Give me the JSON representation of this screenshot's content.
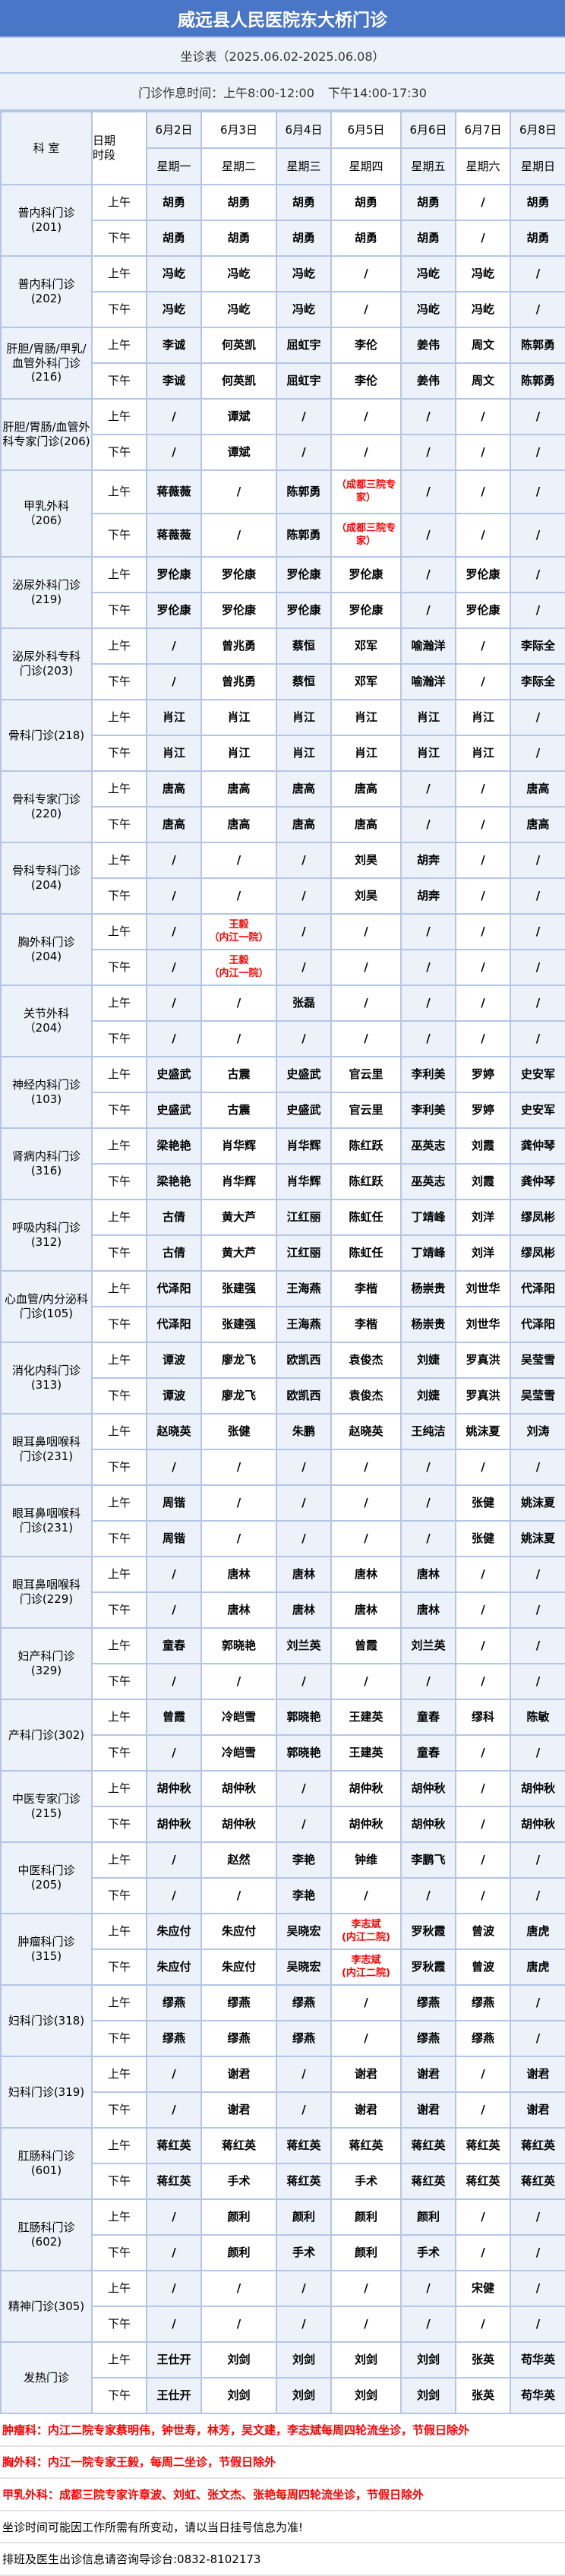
{
  "header": {
    "title": "威远县人民医院东大桥门诊",
    "subtitle": "坐诊表（2025.06.02-2025.06.08）",
    "hours_label": "门诊作息时间：上午8:00-12:00",
    "hours_pm": "下午14:00-17:30"
  },
  "columns": {
    "dept": "科    室",
    "period": "日期\n时段",
    "dates": [
      "6月2日",
      "6月3日",
      "6月4日",
      "6月5日",
      "6月6日",
      "6月7日",
      "6月8日"
    ],
    "weekdays": [
      "星期一",
      "星期二",
      "星期三",
      "星期四",
      "星期五",
      "星期六",
      "星期日"
    ],
    "am": "上午",
    "pm": "下午"
  },
  "colors": {
    "title_bg": "#4a76c8",
    "shade": "#ecf1fa",
    "border": "#b4c6e7",
    "highlight": "#ff0000"
  },
  "departments": [
    {
      "name": "普内科门诊\n(201)",
      "am": [
        "胡勇",
        "胡勇",
        "胡勇",
        "胡勇",
        "胡勇",
        "/",
        "胡勇"
      ],
      "pm": [
        "胡勇",
        "胡勇",
        "胡勇",
        "胡勇",
        "胡勇",
        "/",
        "胡勇"
      ]
    },
    {
      "name": "普内科门诊\n(202)",
      "am": [
        "冯屹",
        "冯屹",
        "冯屹",
        "/",
        "冯屹",
        "冯屹",
        "/"
      ],
      "pm": [
        "冯屹",
        "冯屹",
        "冯屹",
        "/",
        "冯屹",
        "冯屹",
        "/"
      ]
    },
    {
      "name": "肝胆/胃肠/甲乳/血管外科门诊(216)",
      "am": [
        "李诚",
        "何英凯",
        "屈虹宇",
        "李伦",
        "姜伟",
        "周文",
        "陈郭勇"
      ],
      "pm": [
        "李诚",
        "何英凯",
        "屈虹宇",
        "李伦",
        "姜伟",
        "周文",
        "陈郭勇"
      ]
    },
    {
      "name": "肝胆/胃肠/血管外科专家门诊(206)",
      "am": [
        "/",
        "谭斌",
        "/",
        "/",
        "/",
        "/",
        "/"
      ],
      "pm": [
        "/",
        "谭斌",
        "/",
        "/",
        "/",
        "/",
        "/"
      ]
    },
    {
      "name": "甲乳外科\n（206）",
      "tall": true,
      "am": [
        "蒋薇薇",
        "/",
        "陈郭勇",
        "（成都三院专家）",
        "/",
        "/",
        "/"
      ],
      "pm": [
        "蒋薇薇",
        "/",
        "陈郭勇",
        "（成都三院专家）",
        "/",
        "/",
        "/"
      ],
      "red": [
        3
      ]
    },
    {
      "name": "泌尿外科门诊\n(219)",
      "am": [
        "罗伦康",
        "罗伦康",
        "罗伦康",
        "罗伦康",
        "/",
        "罗伦康",
        "/"
      ],
      "pm": [
        "罗伦康",
        "罗伦康",
        "罗伦康",
        "罗伦康",
        "/",
        "罗伦康",
        "/"
      ]
    },
    {
      "name": "泌尿外科专科\n门诊(203)",
      "am": [
        "/",
        "曾兆勇",
        "蔡恒",
        "邓军",
        "喻瀚洋",
        "/",
        "李际全"
      ],
      "pm": [
        "/",
        "曾兆勇",
        "蔡恒",
        "邓军",
        "喻瀚洋",
        "/",
        "李际全"
      ]
    },
    {
      "name": "骨科门诊(218)",
      "am": [
        "肖江",
        "肖江",
        "肖江",
        "肖江",
        "肖江",
        "肖江",
        "/"
      ],
      "pm": [
        "肖江",
        "肖江",
        "肖江",
        "肖江",
        "肖江",
        "肖江",
        "/"
      ]
    },
    {
      "name": "骨科专家门诊\n(220)",
      "am": [
        "唐高",
        "唐高",
        "唐高",
        "唐高",
        "/",
        "/",
        "唐高"
      ],
      "pm": [
        "唐高",
        "唐高",
        "唐高",
        "唐高",
        "/",
        "/",
        "唐高"
      ]
    },
    {
      "name": "骨科专科门诊\n(204)",
      "am": [
        "/",
        "/",
        "/",
        "刘昊",
        "胡奔",
        "/",
        "/"
      ],
      "pm": [
        "/",
        "/",
        "/",
        "刘昊",
        "胡奔",
        "/",
        "/"
      ]
    },
    {
      "name": "胸外科门诊\n(204)",
      "am": [
        "/",
        "王毅\n（内江一院）",
        "/",
        "/",
        "/",
        "/",
        "/"
      ],
      "pm": [
        "/",
        "王毅\n（内江一院）",
        "/",
        "/",
        "/",
        "/",
        "/"
      ],
      "red": [
        1
      ]
    },
    {
      "name": "关节外科\n（204）",
      "am": [
        "/",
        "/",
        "张磊",
        "/",
        "/",
        "/",
        "/"
      ],
      "pm": [
        "/",
        "/",
        "/",
        "/",
        "/",
        "/",
        "/"
      ]
    },
    {
      "name": "神经内科门诊\n(103)",
      "am": [
        "史盛武",
        "古震",
        "史盛武",
        "官云里",
        "李利美",
        "罗婷",
        "史安军"
      ],
      "pm": [
        "史盛武",
        "古震",
        "史盛武",
        "官云里",
        "李利美",
        "罗婷",
        "史安军"
      ]
    },
    {
      "name": "肾病内科门诊\n(316)",
      "am": [
        "梁艳艳",
        "肖华辉",
        "肖华辉",
        "陈红跃",
        "巫英志",
        "刘霞",
        "龚仲琴"
      ],
      "pm": [
        "梁艳艳",
        "肖华辉",
        "肖华辉",
        "陈红跃",
        "巫英志",
        "刘霞",
        "龚仲琴"
      ]
    },
    {
      "name": "呼吸内科门诊\n(312)",
      "am": [
        "古倩",
        "黄大芦",
        "江红丽",
        "陈虹任",
        "丁靖峰",
        "刘洋",
        "缪凤彬"
      ],
      "pm": [
        "古倩",
        "黄大芦",
        "江红丽",
        "陈虹任",
        "丁靖峰",
        "刘洋",
        "缪凤彬"
      ]
    },
    {
      "name": "心血管/内分泌科门诊(105)",
      "am": [
        "代泽阳",
        "张建强",
        "王海燕",
        "李楷",
        "杨崇贵",
        "刘世华",
        "代泽阳"
      ],
      "pm": [
        "代泽阳",
        "张建强",
        "王海燕",
        "李楷",
        "杨崇贵",
        "刘世华",
        "代泽阳"
      ]
    },
    {
      "name": "消化内科门诊\n(313)",
      "am": [
        "谭波",
        "廖龙飞",
        "欧凯西",
        "袁俊杰",
        "刘婕",
        "罗真洪",
        "吴莹雪"
      ],
      "pm": [
        "谭波",
        "廖龙飞",
        "欧凯西",
        "袁俊杰",
        "刘婕",
        "罗真洪",
        "吴莹雪"
      ]
    },
    {
      "name": "眼耳鼻咽喉科\n门诊(231)",
      "am": [
        "赵晓英",
        "张健",
        "朱鹏",
        "赵晓英",
        "王纯洁",
        "姚沫夏",
        "刘涛"
      ],
      "pm": [
        "/",
        "/",
        "/",
        "/",
        "/",
        "/",
        "/"
      ]
    },
    {
      "name": "眼耳鼻咽喉科\n门诊(231)",
      "am": [
        "周锴",
        "/",
        "/",
        "/",
        "/",
        "张健",
        "姚沫夏"
      ],
      "pm": [
        "周锴",
        "/",
        "/",
        "/",
        "/",
        "张健",
        "姚沫夏"
      ]
    },
    {
      "name": "眼耳鼻咽喉科\n门诊(229)",
      "am": [
        "/",
        "唐林",
        "唐林",
        "唐林",
        "唐林",
        "/",
        "/"
      ],
      "pm": [
        "/",
        "唐林",
        "唐林",
        "唐林",
        "唐林",
        "/",
        "/"
      ]
    },
    {
      "name": "妇产科门诊\n(329)",
      "am": [
        "童春",
        "郭晓艳",
        "刘兰英",
        "曾霞",
        "刘兰英",
        "/",
        "/"
      ],
      "pm": [
        "/",
        "/",
        "/",
        "/",
        "/",
        "/",
        "/"
      ]
    },
    {
      "name": "产科门诊(302)",
      "am": [
        "曾霞",
        "冷皑雪",
        "郭晓艳",
        "王建英",
        "童春",
        "缪科",
        "陈敏"
      ],
      "pm": [
        "/",
        "冷皑雪",
        "郭晓艳",
        "王建英",
        "童春",
        "/",
        "/"
      ]
    },
    {
      "name": "中医专家门诊\n(215)",
      "am": [
        "胡仲秋",
        "胡仲秋",
        "/",
        "胡仲秋",
        "胡仲秋",
        "/",
        "胡仲秋"
      ],
      "pm": [
        "胡仲秋",
        "胡仲秋",
        "/",
        "胡仲秋",
        "胡仲秋",
        "/",
        "胡仲秋"
      ]
    },
    {
      "name": "中医科门诊\n(205)",
      "am": [
        "/",
        "赵然",
        "李艳",
        "钟维",
        "李鹏飞",
        "/",
        "/"
      ],
      "pm": [
        "/",
        "/",
        "李艳",
        "/",
        "/",
        "/",
        "/"
      ]
    },
    {
      "name": "肿瘤科门诊\n(315)",
      "am": [
        "朱应付",
        "朱应付",
        "吴晓宏",
        "李志斌\n(内江二院)",
        "罗秋霞",
        "曾波",
        "唐虎"
      ],
      "pm": [
        "朱应付",
        "朱应付",
        "吴晓宏",
        "李志斌\n(内江二院)",
        "罗秋霞",
        "曾波",
        "唐虎"
      ],
      "red": [
        3
      ]
    },
    {
      "name": "妇科门诊(318)",
      "am": [
        "缪燕",
        "缪燕",
        "缪燕",
        "/",
        "缪燕",
        "缪燕",
        "/"
      ],
      "pm": [
        "缪燕",
        "缪燕",
        "缪燕",
        "/",
        "缪燕",
        "缪燕",
        "/"
      ]
    },
    {
      "name": "妇科门诊(319)",
      "am": [
        "/",
        "谢君",
        "/",
        "谢君",
        "谢君",
        "/",
        "谢君"
      ],
      "pm": [
        "/",
        "谢君",
        "/",
        "谢君",
        "谢君",
        "/",
        "谢君"
      ]
    },
    {
      "name": "肛肠科门诊\n(601)",
      "am": [
        "蒋红英",
        "蒋红英",
        "蒋红英",
        "蒋红英",
        "蒋红英",
        "蒋红英",
        "蒋红英"
      ],
      "pm": [
        "蒋红英",
        "手术",
        "蒋红英",
        "手术",
        "蒋红英",
        "蒋红英",
        "蒋红英"
      ]
    },
    {
      "name": "肛肠科门诊\n(602)",
      "am": [
        "/",
        "颜利",
        "颜利",
        "颜利",
        "颜利",
        "/",
        "/"
      ],
      "pm": [
        "/",
        "颜利",
        "手术",
        "颜利",
        "手术",
        "/",
        "/"
      ]
    },
    {
      "name": "精神门诊(305)",
      "am": [
        "/",
        "/",
        "/",
        "/",
        "/",
        "宋健",
        "/"
      ],
      "pm": [
        "/",
        "/",
        "/",
        "/",
        "/",
        "/",
        "/"
      ]
    },
    {
      "name": "发热门诊",
      "am": [
        "王仕开",
        "刘剑",
        "刘剑",
        "刘剑",
        "刘剑",
        "张英",
        "苟华英"
      ],
      "pm": [
        "王仕开",
        "刘剑",
        "刘剑",
        "刘剑",
        "刘剑",
        "张英",
        "苟华英"
      ]
    }
  ],
  "notes": [
    {
      "text": "肿瘤科：内江二院专家蔡明伟，钟世寿，林芳，吴文建，李志斌每周四轮流坐诊，节假日除外",
      "red": true
    },
    {
      "text": "胸外科：内江一院专家王毅，每周二坐诊，节假日除外",
      "red": true
    },
    {
      "text": "甲乳外科：成都三院专家许章波、刘虹、张文杰、张艳每周四轮流坐诊，节假日除外",
      "red": true
    },
    {
      "text": "坐诊时间可能因工作所需有所变动，请以当日挂号信息为准!",
      "red": false
    },
    {
      "text": "排班及医生出诊信息请咨询导诊台:0832-8102173",
      "red": false
    }
  ]
}
